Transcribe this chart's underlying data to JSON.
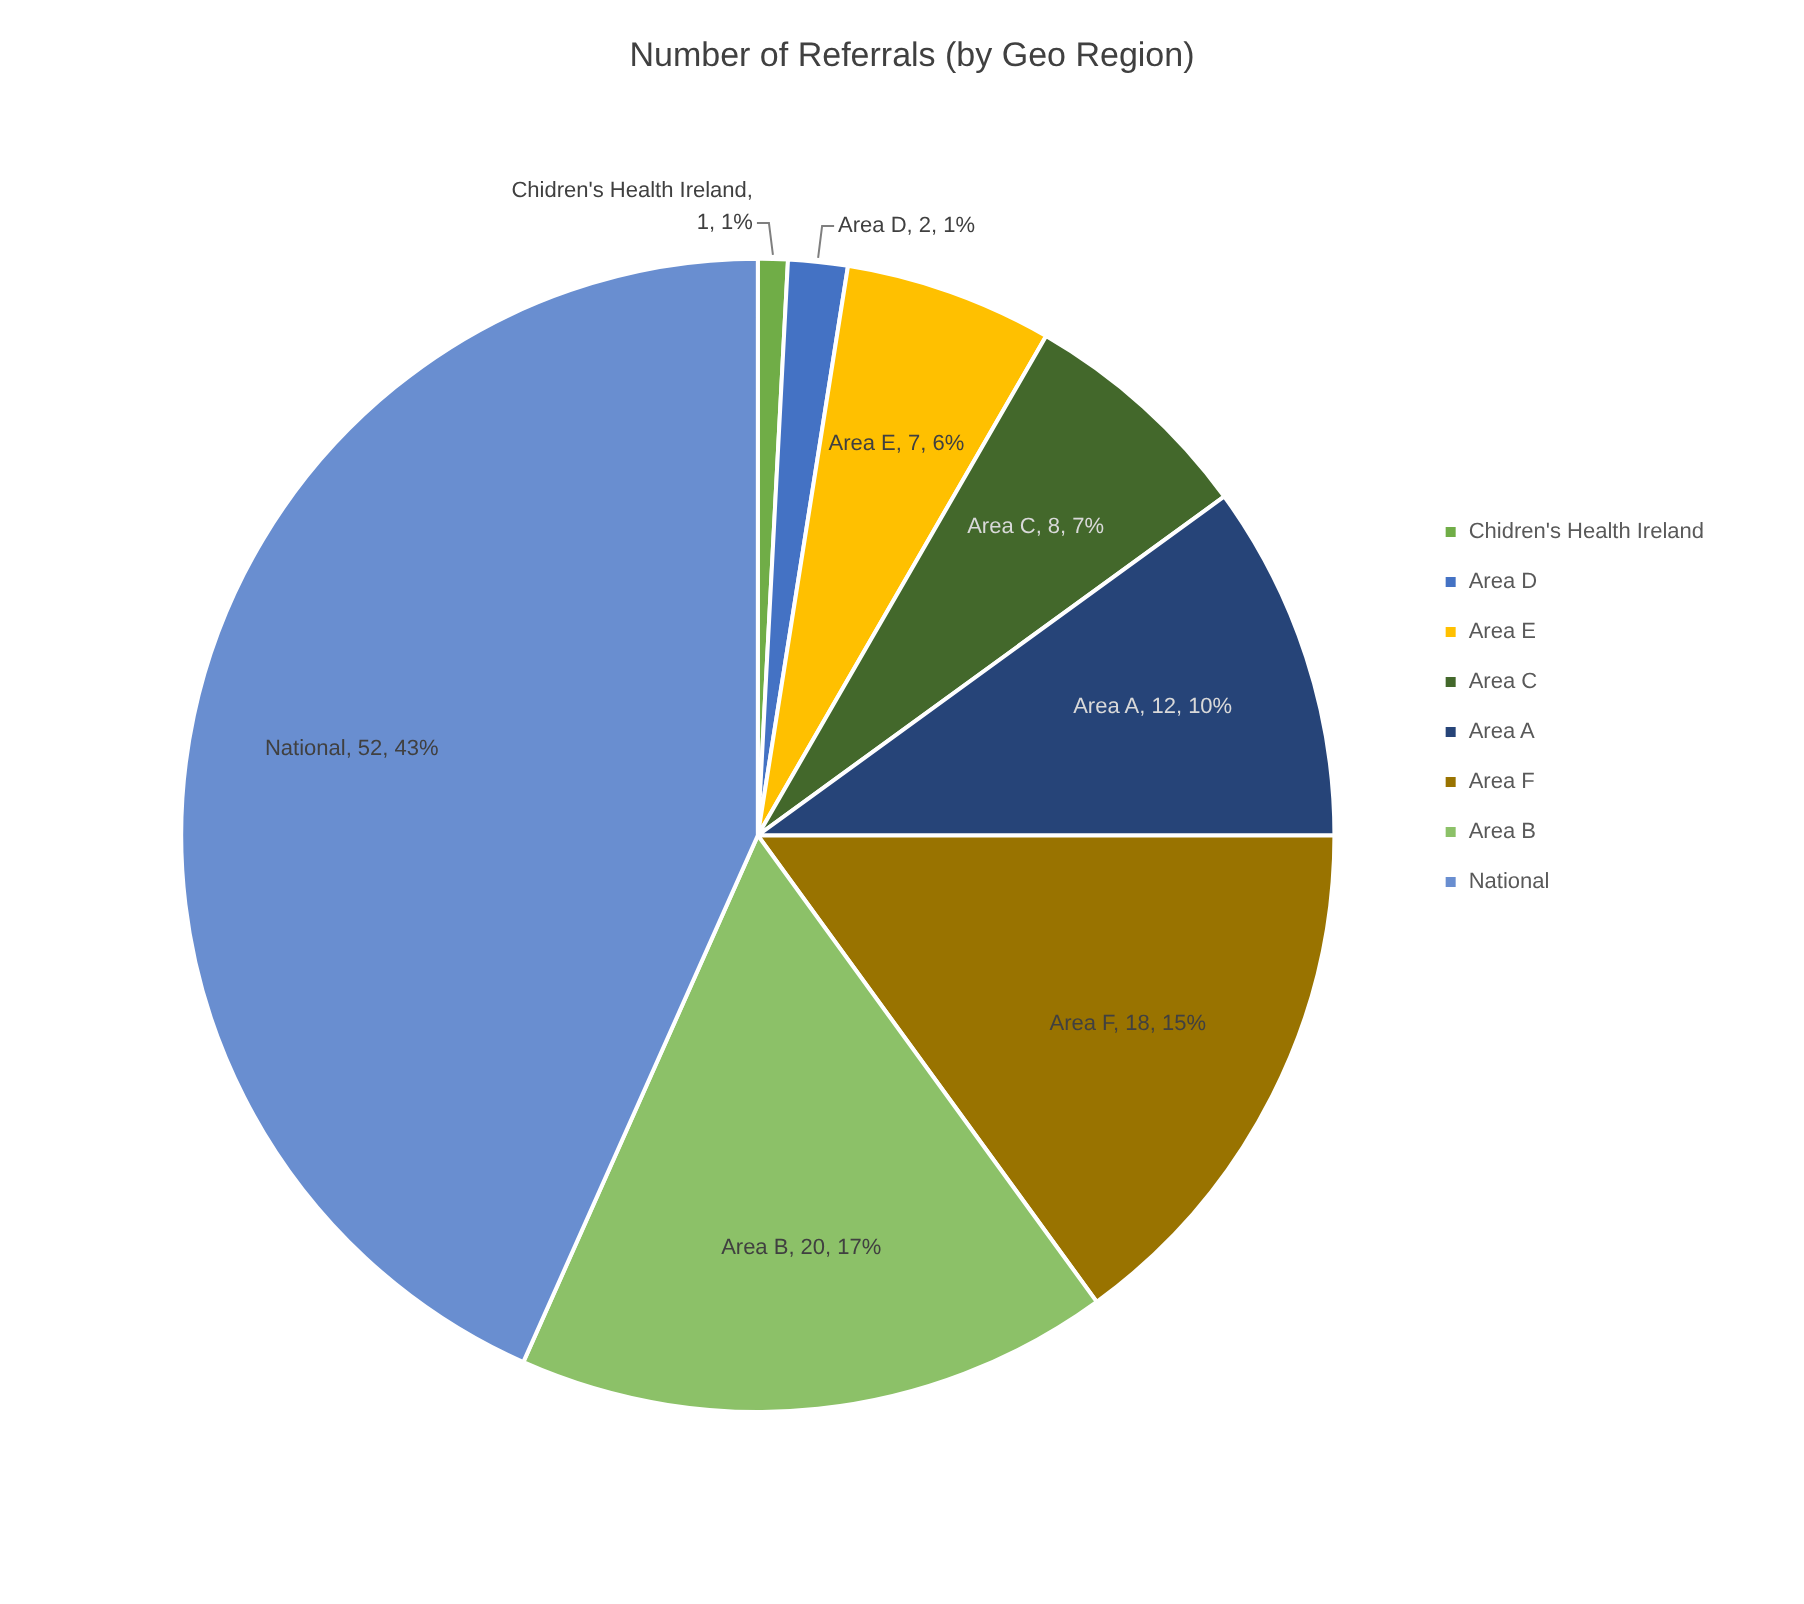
{
  "chart_data": {
    "type": "pie",
    "title": "Number of Referrals (by Geo Region)",
    "categories": [
      "Chidren's Health Ireland",
      "Area D",
      "Area E",
      "Area C",
      "Area A",
      "Area F",
      "Area B",
      "National"
    ],
    "values": [
      1,
      2,
      7,
      8,
      12,
      18,
      20,
      52
    ],
    "colors": [
      "#70ad47",
      "#4472c4",
      "#ffc000",
      "#43682b",
      "#264478",
      "#997300",
      "#8cc168",
      "#698ed0"
    ],
    "value_labels": [
      "Chidren's Health Ireland, 1, 1%",
      "Area D, 2, 1%",
      "Area E, 7, 6%",
      "Area C, 8, 7%",
      "Area A, 12, 10%",
      "Area F, 18, 15%",
      "Area B, 20, 17%",
      "National, 52, 43%"
    ],
    "legend": "right"
  }
}
